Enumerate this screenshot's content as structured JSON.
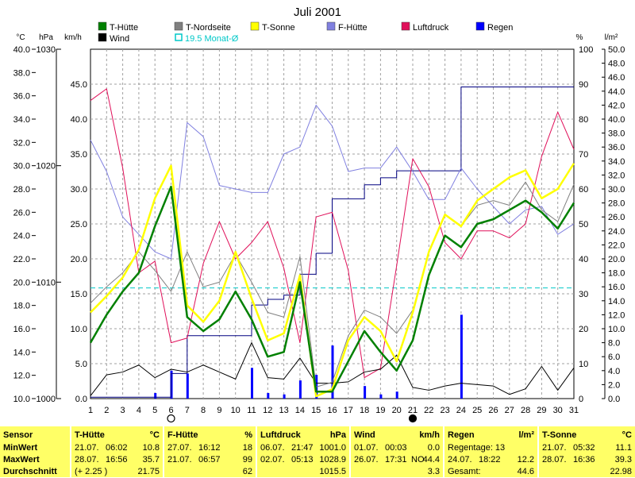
{
  "chart_data": {
    "type": "line",
    "title": "Juli 2001",
    "x": [
      1,
      2,
      3,
      4,
      5,
      6,
      7,
      8,
      9,
      10,
      11,
      12,
      13,
      14,
      15,
      16,
      17,
      18,
      19,
      20,
      21,
      22,
      23,
      24,
      25,
      26,
      27,
      28,
      29,
      30,
      31
    ],
    "axes": {
      "temp_unit": "°C",
      "pressure_unit": "hPa",
      "wind_unit": "km/h",
      "percent_unit": "%",
      "rain_unit": "l/m²",
      "temp_ticks": [
        "40.0",
        "38.0",
        "36.0",
        "34.0",
        "32.0",
        "30.0",
        "28.0",
        "26.0",
        "24.0",
        "22.0",
        "20.0",
        "18.0",
        "16.0",
        "14.0",
        "12.0",
        "10.0"
      ],
      "pressure_ticks": [
        "1030",
        "1020",
        "1010",
        "1000"
      ],
      "wind_ticks": [
        "45.0",
        "40.0",
        "35.0",
        "30.0",
        "25.0",
        "20.0",
        "15.0",
        "10.0",
        "5.0",
        "0.0"
      ],
      "percent_ticks": [
        "100",
        "90",
        "80",
        "70",
        "60",
        "50",
        "40",
        "30",
        "20",
        "10",
        "0"
      ],
      "rain_ticks": [
        "50.0",
        "48.0",
        "46.0",
        "44.0",
        "42.0",
        "40.0",
        "38.0",
        "36.0",
        "34.0",
        "32.0",
        "30.0",
        "28.0",
        "26.0",
        "24.0",
        "22.0",
        "20.0",
        "18.0",
        "16.0",
        "14.0",
        "12.0",
        "10.0",
        "8.0",
        "6.0",
        "4.0",
        "2.0",
        "0.0"
      ],
      "temp_range": [
        10,
        40
      ],
      "pressure_range": [
        1000,
        1030
      ],
      "wind_range": [
        0,
        50
      ],
      "percent_range": [
        0,
        100
      ],
      "rain_range": [
        0,
        50
      ]
    },
    "legend": [
      {
        "name": "T-Hütte",
        "color": "#008000"
      },
      {
        "name": "Wind",
        "color": "#000000"
      },
      {
        "name": "T-Nordseite",
        "color": "#808080"
      },
      {
        "name": "19.5 Monat-Ø",
        "color": "#00c8c8"
      },
      {
        "name": "T-Sonne",
        "color": "#ffff00"
      },
      {
        "name": "F-Hütte",
        "color": "#8080e0"
      },
      {
        "name": "Luftdruck",
        "color": "#e0105a"
      },
      {
        "name": "Regen",
        "color": "#0000ff"
      }
    ],
    "monthly_mean_temp": 19.5,
    "series": [
      {
        "name": "T-Hütte",
        "axis": "temp",
        "color": "#008000",
        "width": 2.5,
        "values": [
          14.8,
          17.2,
          19.2,
          20.8,
          24.8,
          28.2,
          17.0,
          15.8,
          16.8,
          19.2,
          16.8,
          13.6,
          14.0,
          20.0,
          10.6,
          10.6,
          13.2,
          15.8,
          14.0,
          12.4,
          15.0,
          20.6,
          24.0,
          23.0,
          25.0,
          25.4,
          26.2,
          27.0,
          26.0,
          24.6,
          26.8
        ]
      },
      {
        "name": "T-Sonne",
        "axis": "temp",
        "color": "#ffff00",
        "width": 2.5,
        "values": [
          17.4,
          18.8,
          20.4,
          22.8,
          27.2,
          30.0,
          18.0,
          16.6,
          18.4,
          22.6,
          18.6,
          15.0,
          15.6,
          20.6,
          10.2,
          10.8,
          15.0,
          17.0,
          15.8,
          13.2,
          17.4,
          22.6,
          25.8,
          24.8,
          27.0,
          28.0,
          29.0,
          29.6,
          27.2,
          28.0,
          30.2
        ]
      },
      {
        "name": "T-Nordseite",
        "axis": "temp",
        "color": "#808080",
        "width": 1,
        "values": [
          18.2,
          19.6,
          20.8,
          22.6,
          21.0,
          19.2,
          22.6,
          19.6,
          20.0,
          22.4,
          20.0,
          17.4,
          17.0,
          22.2,
          11.0,
          11.4,
          15.4,
          17.6,
          17.0,
          15.6,
          17.6,
          22.6,
          25.8,
          24.8,
          26.6,
          27.0,
          26.6,
          28.6,
          26.2,
          25.2,
          28.4
        ]
      },
      {
        "name": "F-Hütte",
        "axis": "percent",
        "color": "#8080e0",
        "width": 1,
        "values": [
          74,
          65,
          52,
          47,
          42,
          40,
          79,
          75,
          61,
          60,
          59,
          59,
          70,
          72,
          84,
          78,
          65,
          66,
          66,
          72,
          65,
          57,
          57,
          66,
          60,
          55,
          50,
          54,
          55,
          47,
          50
        ]
      },
      {
        "name": "Luftdruck",
        "axis": "pressure",
        "color": "#e0105a",
        "width": 1,
        "values": [
          1025.6,
          1026.6,
          1019.8,
          1010.8,
          1011.8,
          1004.8,
          1005.2,
          1011.6,
          1015.2,
          1012.0,
          1013.4,
          1015.2,
          1011.2,
          1004.8,
          1015.6,
          1016.0,
          1011.0,
          1001.8,
          1002.6,
          1011.4,
          1020.6,
          1018.2,
          1013.4,
          1012.0,
          1014.4,
          1014.4,
          1013.8,
          1015.0,
          1020.8,
          1024.6,
          1021.4
        ]
      },
      {
        "name": "Wind",
        "axis": "wind",
        "color": "#000000",
        "width": 1,
        "values": [
          0.4,
          3.4,
          3.8,
          4.8,
          3.0,
          4.2,
          3.8,
          4.8,
          3.8,
          2.8,
          8.0,
          3.0,
          2.8,
          5.8,
          2.2,
          2.2,
          2.4,
          3.8,
          4.2,
          6.2,
          1.6,
          1.2,
          1.8,
          2.2,
          2.0,
          1.8,
          0.6,
          1.4,
          4.6,
          1.2,
          4.4
        ]
      },
      {
        "name": "Regen-Summe",
        "axis": "rain",
        "color": "#000080",
        "width": 1,
        "step": true,
        "values": [
          0.2,
          0.2,
          0.2,
          0.2,
          0.2,
          3.6,
          9.0,
          9.0,
          9.0,
          9.0,
          13.4,
          14.2,
          14.8,
          17.8,
          20.8,
          28.6,
          28.6,
          30.6,
          31.6,
          32.6,
          32.6,
          32.6,
          32.6,
          44.6,
          44.6,
          44.6,
          44.6,
          44.6,
          44.6,
          44.6,
          44.6
        ]
      }
    ],
    "rain_bars": {
      "name": "Regen",
      "axis": "rain",
      "color": "#0000ff",
      "values": [
        0,
        0,
        0,
        0,
        0.8,
        4.0,
        3.6,
        0,
        0,
        0,
        4.4,
        0.8,
        0.6,
        2.6,
        3.4,
        7.6,
        0,
        1.8,
        0.6,
        1.0,
        0,
        0,
        0,
        12.0,
        0,
        0,
        0,
        0,
        0,
        0,
        0
      ]
    },
    "moon_markers": [
      {
        "day": 6,
        "symbol": "full-moon"
      },
      {
        "day": 21,
        "symbol": "new-moon"
      }
    ]
  },
  "stats": {
    "sensor": {
      "title": "Sensor",
      "rows": [
        "MinWert",
        "MaxWert",
        "Durchschnitt"
      ]
    },
    "t_huette": {
      "title": "T-Hütte",
      "unit": "°C",
      "min_date": "21.07.",
      "min_time": "06:02",
      "min_value": "10.8",
      "max_date": "28.07.",
      "max_time": "16:56",
      "max_value": "35.7",
      "avg_note": "(+ 2.25 )",
      "avg_value": "21.75"
    },
    "f_huette": {
      "title": "F-Hütte",
      "unit": "%",
      "min_date": "27.07.",
      "min_time": "16:12",
      "min_value": "18",
      "max_date": "21.07.",
      "max_time": "06:57",
      "max_value": "99",
      "avg_value": "62"
    },
    "luftdruck": {
      "title": "Luftdruck",
      "unit": "hPa",
      "min_date": "06.07.",
      "min_time": "21:47",
      "min_value": "1001.0",
      "max_date": "02.07.",
      "max_time": "05:13",
      "max_value": "1028.9",
      "avg_value": "1015.5"
    },
    "wind": {
      "title": "Wind",
      "unit": "km/h",
      "min_date": "01.07.",
      "min_time": "00:03",
      "min_value": "0.0",
      "max_date": "26.07.",
      "max_time": "17:31",
      "max_dir": "NO",
      "max_value": "44.4",
      "avg_value": "3.3"
    },
    "regen": {
      "title": "Regen",
      "unit": "l/m²",
      "days_label": "Regentage: 13",
      "max_date": "24.07.",
      "max_time": "18:22",
      "max_value": "12.2",
      "total_label": "Gesamt:",
      "total_value": "44.6"
    },
    "t_sonne": {
      "title": "T-Sonne",
      "unit": "°C",
      "min_date": "21.07.",
      "min_time": "05:32",
      "min_value": "11.1",
      "max_date": "28.07.",
      "max_time": "16:36",
      "max_value": "39.3",
      "avg_value": "22.98"
    }
  }
}
